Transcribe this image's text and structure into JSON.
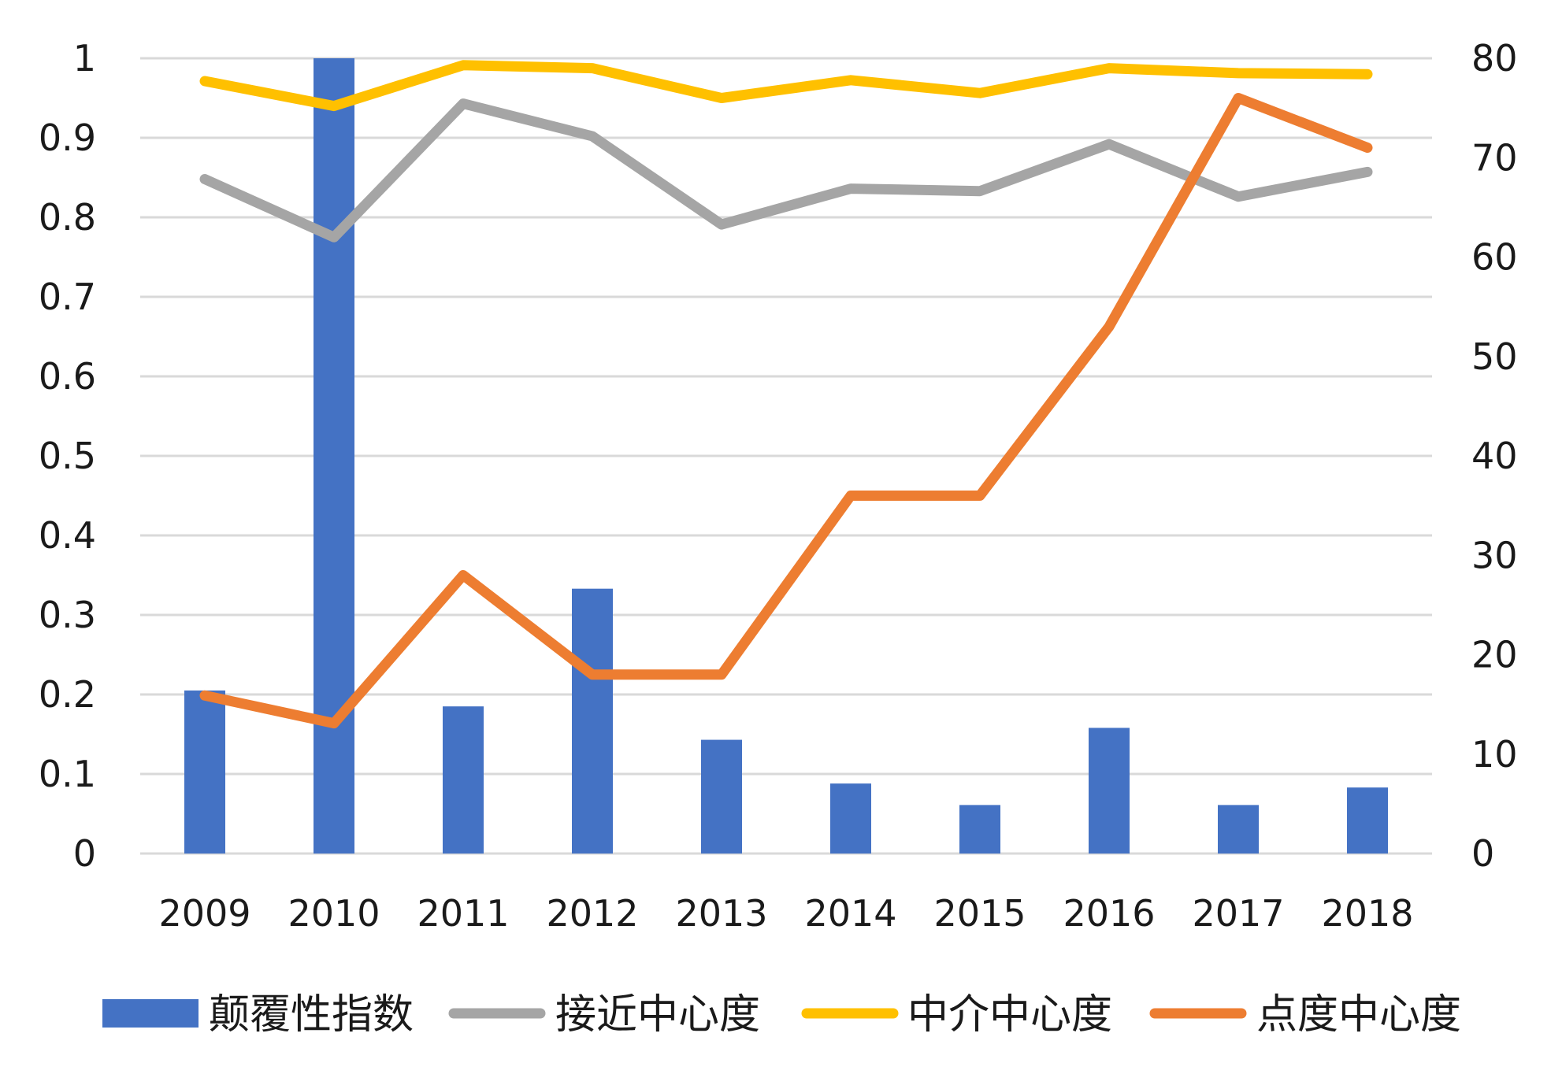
{
  "chart_data": {
    "type": "bar+line",
    "categories": [
      "2009",
      "2010",
      "2011",
      "2012",
      "2013",
      "2014",
      "2015",
      "2016",
      "2017",
      "2018"
    ],
    "left_axis": {
      "ylim": [
        0,
        1
      ],
      "ticks": [
        "0",
        "0.1",
        "0.2",
        "0.3",
        "0.4",
        "0.5",
        "0.6",
        "0.7",
        "0.8",
        "0.9",
        "1"
      ]
    },
    "right_axis": {
      "ylim": [
        0,
        80
      ],
      "ticks": [
        "0",
        "10",
        "20",
        "30",
        "40",
        "50",
        "60",
        "70",
        "80"
      ]
    },
    "grid": true,
    "legend_position": "bottom",
    "series": [
      {
        "name": "颠覆性指数",
        "kind": "bar",
        "axis": "left",
        "color": "#4472C4",
        "values": [
          0.205,
          1.0,
          0.185,
          0.333,
          0.143,
          0.088,
          0.061,
          0.158,
          0.061,
          0.083
        ]
      },
      {
        "name": "接近中心度",
        "kind": "line",
        "axis": "left",
        "color": "#A5A5A5",
        "values": [
          0.848,
          0.775,
          0.943,
          0.902,
          0.791,
          0.836,
          0.833,
          0.892,
          0.826,
          0.857
        ]
      },
      {
        "name": "中介中心度",
        "kind": "line",
        "axis": "right",
        "color": "#FFC000",
        "values": [
          77.7,
          75.2,
          79.3,
          79.0,
          76.0,
          77.8,
          76.5,
          79.0,
          78.5,
          78.4
        ]
      },
      {
        "name": "点度中心度",
        "kind": "line",
        "axis": "right",
        "color": "#ED7D31",
        "values": [
          15.9,
          13.1,
          28.0,
          18.0,
          18.0,
          36.0,
          36.0,
          53.0,
          76.0,
          71.0
        ]
      }
    ]
  }
}
